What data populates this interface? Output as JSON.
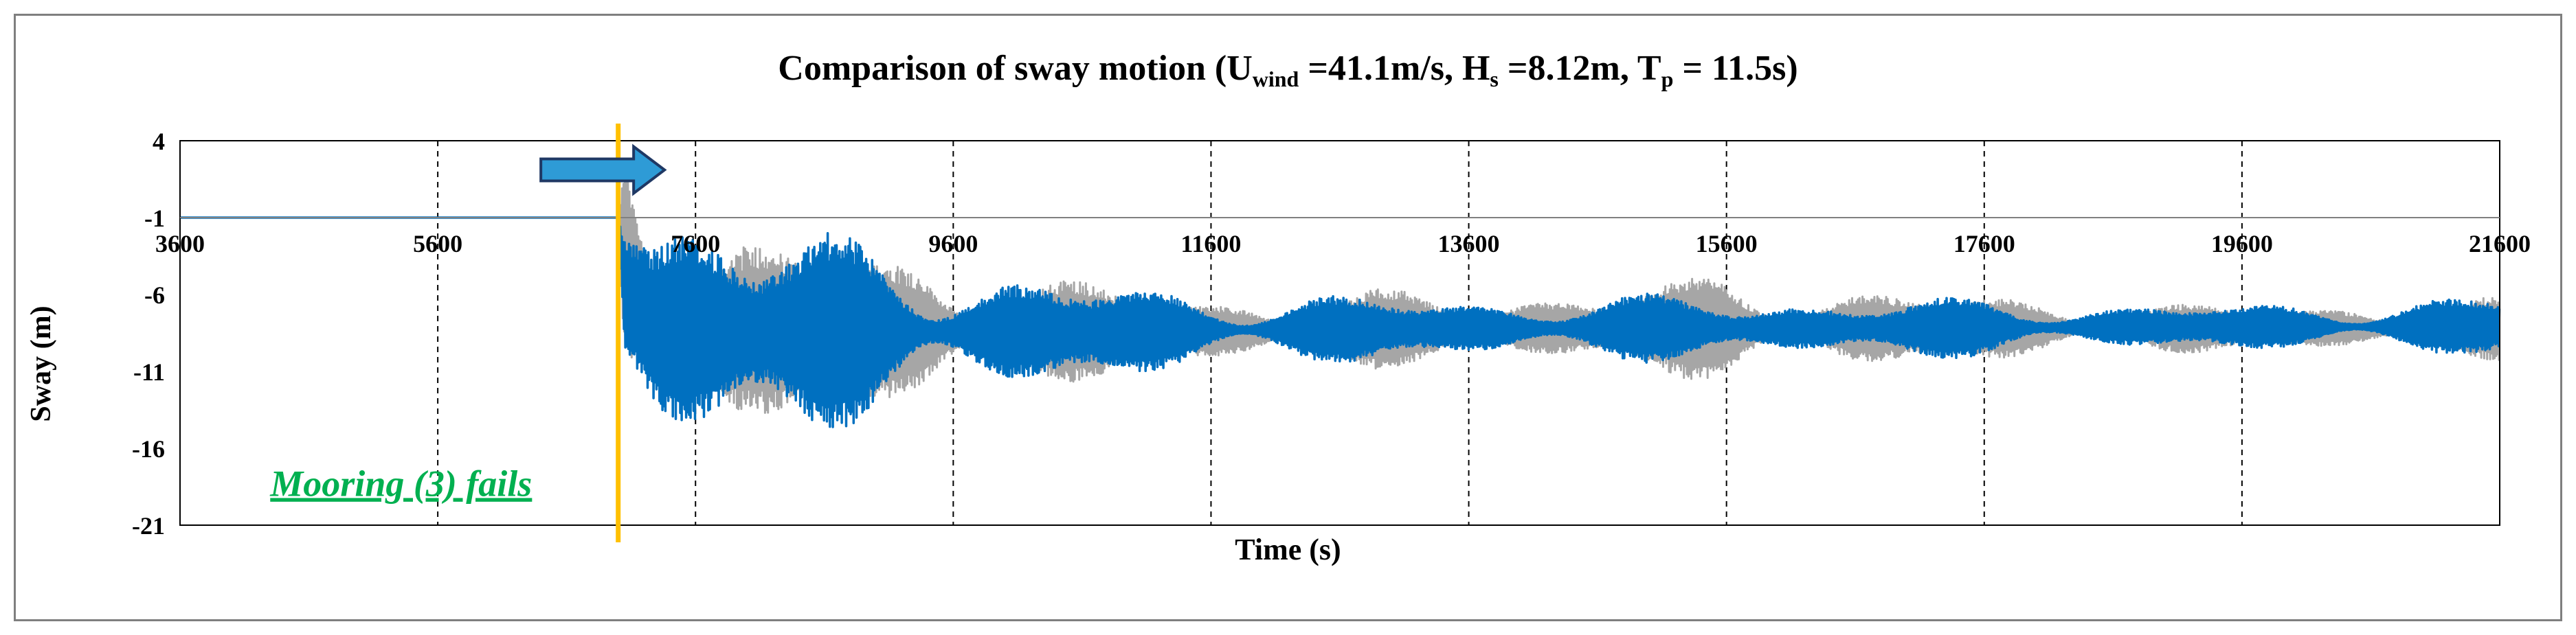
{
  "title": {
    "prefix": "Comparison of sway motion (U",
    "u_sub": "wind",
    "mid1": " =41.1m/s, H",
    "h_sub": "s",
    "mid2": " =8.12m, T",
    "t_sub": "p",
    "suffix": " = 11.5s)"
  },
  "colors": {
    "primary": "#0070c0",
    "reference": "#a6a6a6",
    "failure_line": "#ffc000",
    "annotation": "#00b050",
    "arrow_fill": "#2e9bd6",
    "arrow_stroke": "#1f3864"
  },
  "annotation": {
    "text": "Mooring (3) fails"
  },
  "chart_data": {
    "type": "line",
    "title": "Comparison of sway motion (Uwind =41.1m/s, Hs =8.12m, Tp = 11.5s)",
    "xlabel": "Time (s)",
    "ylabel": "Sway (m)",
    "xlim": [
      3600,
      21600
    ],
    "ylim": [
      -21,
      4
    ],
    "xticks": [
      3600,
      5600,
      7600,
      9600,
      11600,
      13600,
      15600,
      17600,
      19600,
      21600
    ],
    "yticks": [
      4,
      -1,
      -6,
      -11,
      -16,
      -21
    ],
    "grid": {
      "vertical": "dashed",
      "horizontal": false
    },
    "failure_time": 7000,
    "series": [
      {
        "color": "#a6a6a6",
        "x": [
          3600,
          7000,
          7050,
          7300,
          7600,
          8000,
          8500,
          9000,
          9600,
          10200,
          10800,
          11600,
          12400,
          13600,
          14600,
          15600,
          16600,
          17600,
          18600,
          19600,
          20600,
          21600
        ],
        "mean": [
          -1,
          -1,
          -4,
          -8,
          -8.2,
          -8.3,
          -8.4,
          -8.4,
          -8.4,
          -8.4,
          -8.4,
          -8.4,
          -8.3,
          -8.2,
          -8.2,
          -8.2,
          -8.2,
          -8.2,
          -8.2,
          -8.2,
          -8.2,
          -8.2
        ],
        "amplitude": [
          0,
          0,
          9.0,
          9.0,
          8.0,
          6.5,
          5.6,
          4.8,
          4.0,
          3.4,
          2.8,
          2.2,
          2.2,
          2.2,
          2.6,
          3.0,
          2.6,
          2.0,
          1.6,
          1.4,
          1.6,
          1.8
        ]
      },
      {
        "color": "#0070c0",
        "x": [
          3600,
          7000,
          7050,
          7300,
          7600,
          8000,
          8500,
          9000,
          9600,
          10200,
          10800,
          11600,
          12400,
          13600,
          14600,
          15600,
          16600,
          17600,
          18600,
          19600,
          20600,
          21600
        ],
        "mean": [
          -1,
          -1,
          -6,
          -8.2,
          -8.3,
          -8.4,
          -8.4,
          -8.4,
          -8.4,
          -8.4,
          -8.4,
          -8.3,
          -8.3,
          -8.2,
          -8.2,
          -8.2,
          -8.2,
          -8.2,
          -8.1,
          -8.1,
          -8.1,
          -8.1
        ],
        "amplitude": [
          0,
          0,
          10.5,
          10.0,
          8.5,
          7.0,
          5.8,
          4.8,
          4.0,
          3.3,
          2.8,
          2.2,
          2.0,
          1.8,
          1.8,
          1.9,
          1.8,
          1.6,
          1.4,
          1.3,
          1.5,
          1.8
        ]
      }
    ]
  }
}
